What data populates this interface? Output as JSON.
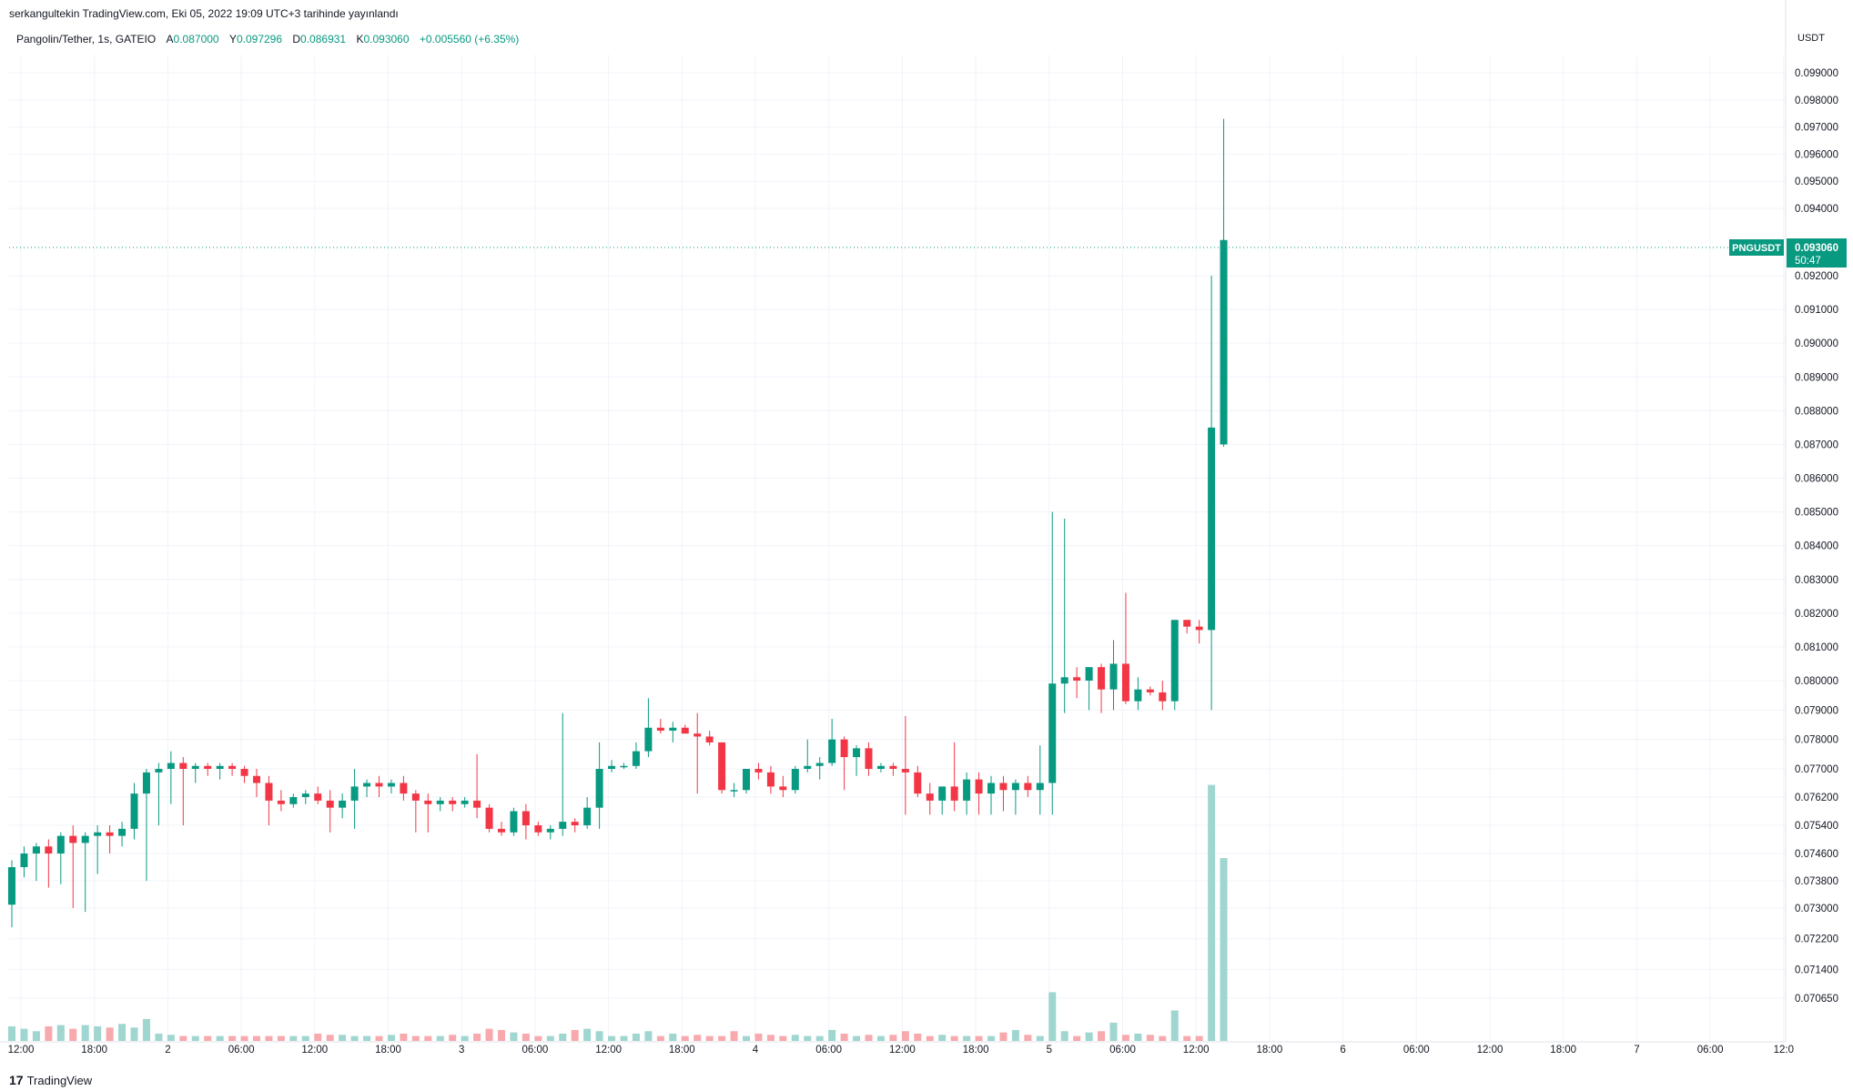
{
  "header": {
    "published": "serkangultekin TradingView.com, Eki 05, 2022 19:09 UTC+3 tarihinde yayınlandı"
  },
  "legend": {
    "symbol": "Pangolin/Tether, 1s, GATEIO",
    "open_label": "A",
    "open": "0.087000",
    "high_label": "Y",
    "high": "0.097296",
    "low_label": "D",
    "low": "0.086931",
    "close_label": "K",
    "close": "0.093060",
    "change": "+0.005560 (+6.35%)"
  },
  "price_tag": {
    "ticker": "PNGUSDT",
    "price": "0.093060",
    "countdown": "50:47"
  },
  "axis_unit": "USDT",
  "brand": {
    "logo": "17",
    "name": "TradingView"
  },
  "colors": {
    "up": "#089981",
    "down": "#f23645",
    "vol_up": "#9fd6cf",
    "vol_down": "#f7a9ad",
    "grid": "#f0f3fa"
  },
  "chart_data": {
    "type": "candlestick",
    "symbol": "PNGUSDT",
    "interval": "1h",
    "y_ticks": [
      "0.099000",
      "0.098000",
      "0.097000",
      "0.096000",
      "0.095000",
      "0.094000",
      "0.092000",
      "0.091000",
      "0.090000",
      "0.089000",
      "0.088000",
      "0.087000",
      "0.086000",
      "0.085000",
      "0.084000",
      "0.083000",
      "0.082000",
      "0.081000",
      "0.080000",
      "0.079000",
      "0.078000",
      "0.077000",
      "0.076200",
      "0.075400",
      "0.074600",
      "0.073800",
      "0.073000",
      "0.072200",
      "0.071400",
      "0.070650"
    ],
    "x_ticks": [
      "12:00",
      "18:00",
      "2",
      "06:00",
      "12:00",
      "18:00",
      "3",
      "06:00",
      "12:00",
      "18:00",
      "4",
      "06:00",
      "12:00",
      "18:00",
      "5",
      "06:00",
      "12:00",
      "18:00",
      "6",
      "06:00",
      "12:00",
      "18:00",
      "7",
      "06:00",
      "12:0"
    ],
    "current_price": 0.09306,
    "candles": [
      [
        0.0731,
        0.0744,
        0.0725,
        0.0742
      ],
      [
        0.0742,
        0.0748,
        0.0739,
        0.0746
      ],
      [
        0.0746,
        0.0749,
        0.0738,
        0.0748
      ],
      [
        0.0748,
        0.075,
        0.0736,
        0.0746
      ],
      [
        0.0746,
        0.0752,
        0.0737,
        0.0751
      ],
      [
        0.0751,
        0.0754,
        0.073,
        0.0749
      ],
      [
        0.0749,
        0.0752,
        0.0729,
        0.0751
      ],
      [
        0.0751,
        0.0754,
        0.074,
        0.0752
      ],
      [
        0.0752,
        0.0754,
        0.0746,
        0.0751
      ],
      [
        0.0751,
        0.0755,
        0.0748,
        0.0753
      ],
      [
        0.0753,
        0.0766,
        0.075,
        0.0763
      ],
      [
        0.0763,
        0.077,
        0.0738,
        0.0769
      ],
      [
        0.0769,
        0.0772,
        0.0754,
        0.077
      ],
      [
        0.077,
        0.0776,
        0.076,
        0.0772
      ],
      [
        0.0772,
        0.0774,
        0.0754,
        0.077
      ],
      [
        0.077,
        0.0772,
        0.0766,
        0.0771
      ],
      [
        0.0771,
        0.0772,
        0.0768,
        0.077
      ],
      [
        0.077,
        0.0772,
        0.0767,
        0.0771
      ],
      [
        0.0771,
        0.0772,
        0.0768,
        0.077
      ],
      [
        0.077,
        0.0771,
        0.0766,
        0.0768
      ],
      [
        0.0768,
        0.077,
        0.0762,
        0.0766
      ],
      [
        0.0766,
        0.0768,
        0.0754,
        0.0761
      ],
      [
        0.0761,
        0.0764,
        0.0758,
        0.076
      ],
      [
        0.076,
        0.0763,
        0.0759,
        0.0762
      ],
      [
        0.0762,
        0.0764,
        0.076,
        0.0763
      ],
      [
        0.0763,
        0.0765,
        0.076,
        0.0761
      ],
      [
        0.0761,
        0.0764,
        0.0752,
        0.0759
      ],
      [
        0.0759,
        0.0763,
        0.0756,
        0.0761
      ],
      [
        0.0761,
        0.077,
        0.0753,
        0.0765
      ],
      [
        0.0765,
        0.0767,
        0.0762,
        0.0766
      ],
      [
        0.0766,
        0.0768,
        0.0762,
        0.0765
      ],
      [
        0.0765,
        0.0767,
        0.0763,
        0.0766
      ],
      [
        0.0766,
        0.0768,
        0.0761,
        0.0763
      ],
      [
        0.0763,
        0.0764,
        0.0752,
        0.0761
      ],
      [
        0.0761,
        0.0763,
        0.0752,
        0.076
      ],
      [
        0.076,
        0.0762,
        0.0758,
        0.0761
      ],
      [
        0.0761,
        0.0762,
        0.0758,
        0.076
      ],
      [
        0.076,
        0.0762,
        0.0759,
        0.0761
      ],
      [
        0.0761,
        0.0775,
        0.0756,
        0.0759
      ],
      [
        0.0759,
        0.076,
        0.0752,
        0.0753
      ],
      [
        0.0753,
        0.0755,
        0.0751,
        0.0752
      ],
      [
        0.0752,
        0.0759,
        0.0751,
        0.0758
      ],
      [
        0.0758,
        0.076,
        0.075,
        0.0754
      ],
      [
        0.0754,
        0.0755,
        0.0751,
        0.0752
      ],
      [
        0.0752,
        0.0754,
        0.075,
        0.0753
      ],
      [
        0.0753,
        0.0789,
        0.0751,
        0.0755
      ],
      [
        0.0755,
        0.0756,
        0.0752,
        0.0754
      ],
      [
        0.0754,
        0.0762,
        0.0753,
        0.0759
      ],
      [
        0.0759,
        0.0779,
        0.0753,
        0.077
      ],
      [
        0.077,
        0.0773,
        0.0769,
        0.0771
      ],
      [
        0.0771,
        0.0772,
        0.077,
        0.0771
      ],
      [
        0.0771,
        0.0779,
        0.077,
        0.0776
      ],
      [
        0.0776,
        0.0794,
        0.0774,
        0.0784
      ],
      [
        0.0784,
        0.0787,
        0.0782,
        0.0783
      ],
      [
        0.0783,
        0.0786,
        0.0779,
        0.0784
      ],
      [
        0.0784,
        0.0785,
        0.0782,
        0.0782
      ],
      [
        0.0782,
        0.0789,
        0.0763,
        0.0781
      ],
      [
        0.0781,
        0.0783,
        0.0778,
        0.0779
      ],
      [
        0.0779,
        0.0779,
        0.0763,
        0.0764
      ],
      [
        0.0764,
        0.0766,
        0.0762,
        0.0764
      ],
      [
        0.0764,
        0.077,
        0.0763,
        0.077
      ],
      [
        0.077,
        0.0772,
        0.0767,
        0.0769
      ],
      [
        0.0769,
        0.0771,
        0.0763,
        0.0765
      ],
      [
        0.0765,
        0.0768,
        0.0762,
        0.0764
      ],
      [
        0.0764,
        0.0771,
        0.0763,
        0.077
      ],
      [
        0.077,
        0.078,
        0.0769,
        0.0771
      ],
      [
        0.0771,
        0.0774,
        0.0767,
        0.0772
      ],
      [
        0.0772,
        0.0787,
        0.0771,
        0.078
      ],
      [
        0.078,
        0.0781,
        0.0764,
        0.0774
      ],
      [
        0.0774,
        0.0778,
        0.0768,
        0.0777
      ],
      [
        0.0777,
        0.0779,
        0.0768,
        0.077
      ],
      [
        0.077,
        0.0772,
        0.0769,
        0.0771
      ],
      [
        0.0771,
        0.0772,
        0.0768,
        0.077
      ],
      [
        0.077,
        0.0788,
        0.0757,
        0.0769
      ],
      [
        0.0769,
        0.0771,
        0.0762,
        0.0763
      ],
      [
        0.0763,
        0.0766,
        0.0757,
        0.0761
      ],
      [
        0.0761,
        0.0764,
        0.0757,
        0.0765
      ],
      [
        0.0765,
        0.0779,
        0.0758,
        0.0761
      ],
      [
        0.0761,
        0.0769,
        0.0757,
        0.0767
      ],
      [
        0.0767,
        0.0769,
        0.0757,
        0.0763
      ],
      [
        0.0763,
        0.0768,
        0.0757,
        0.0766
      ],
      [
        0.0766,
        0.0768,
        0.0758,
        0.0764
      ],
      [
        0.0764,
        0.0767,
        0.0757,
        0.0766
      ],
      [
        0.0766,
        0.0768,
        0.0762,
        0.0764
      ],
      [
        0.0764,
        0.0778,
        0.0757,
        0.0766
      ],
      [
        0.0766,
        0.085,
        0.0757,
        0.0799
      ],
      [
        0.0799,
        0.0848,
        0.0789,
        0.0801
      ],
      [
        0.0801,
        0.0804,
        0.0794,
        0.08
      ],
      [
        0.08,
        0.0803,
        0.079,
        0.0804
      ],
      [
        0.0804,
        0.0805,
        0.0789,
        0.0797
      ],
      [
        0.0797,
        0.0812,
        0.079,
        0.0805
      ],
      [
        0.0805,
        0.0826,
        0.0792,
        0.0793
      ],
      [
        0.0793,
        0.0801,
        0.079,
        0.0797
      ],
      [
        0.0797,
        0.0798,
        0.0795,
        0.0796
      ],
      [
        0.0796,
        0.08,
        0.079,
        0.0793
      ],
      [
        0.0793,
        0.0818,
        0.079,
        0.0818
      ],
      [
        0.0818,
        0.0817,
        0.0814,
        0.0816
      ],
      [
        0.0816,
        0.0818,
        0.0811,
        0.0815
      ],
      [
        0.0815,
        0.092,
        0.079,
        0.0875
      ],
      [
        0.087,
        0.0973,
        0.08693,
        0.09306
      ]
    ],
    "volumes": [
      12,
      10,
      8,
      12,
      13,
      10,
      13,
      12,
      11,
      14,
      11,
      18,
      6,
      5,
      4,
      4,
      4,
      4,
      4,
      4,
      4,
      4,
      4,
      4,
      4,
      6,
      5,
      5,
      4,
      4,
      4,
      5,
      6,
      4,
      4,
      4,
      5,
      4,
      6,
      10,
      9,
      7,
      6,
      4,
      4,
      6,
      9,
      10,
      8,
      4,
      4,
      6,
      8,
      4,
      6,
      4,
      5,
      4,
      4,
      8,
      4,
      6,
      5,
      4,
      5,
      4,
      4,
      9,
      6,
      4,
      5,
      4,
      5,
      8,
      6,
      4,
      5,
      4,
      4,
      4,
      4,
      7,
      9,
      5,
      4,
      40,
      8,
      4,
      7,
      8,
      15,
      5,
      6,
      5,
      4,
      25,
      4,
      4,
      210,
      150
    ],
    "volume_down": [
      false,
      false,
      false,
      true,
      false,
      true,
      false,
      false,
      true,
      false,
      false,
      false,
      false,
      false,
      true,
      false,
      true,
      false,
      true,
      true,
      true,
      true,
      true,
      false,
      false,
      true,
      true,
      false,
      false,
      false,
      true,
      false,
      true,
      true,
      true,
      false,
      true,
      false,
      true,
      true,
      true,
      false,
      true,
      true,
      false,
      false,
      true,
      false,
      false,
      false,
      false,
      false,
      false,
      true,
      false,
      true,
      true,
      true,
      true,
      true,
      false,
      true,
      true,
      true,
      false,
      false,
      false,
      false,
      true,
      false,
      true,
      false,
      true,
      true,
      true,
      true,
      false,
      true,
      false,
      true,
      false,
      true,
      false,
      true,
      false,
      false,
      false,
      true,
      false,
      true,
      false,
      true,
      false,
      true,
      true,
      false,
      true,
      true,
      false,
      false
    ]
  }
}
